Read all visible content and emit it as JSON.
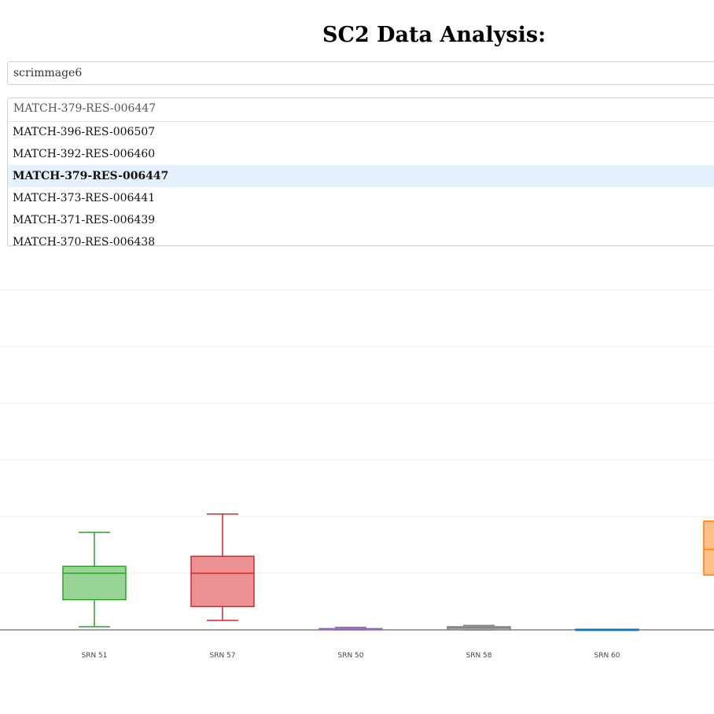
{
  "header": {
    "title": "SC2 Data Analysis:"
  },
  "dataset_select": {
    "value": "scrimmage6"
  },
  "match_select": {
    "value": "MATCH-379-RES-006447",
    "options": [
      "MATCH-396-RES-006507",
      "MATCH-392-RES-006460",
      "MATCH-379-RES-006447",
      "MATCH-373-RES-006441",
      "MATCH-371-RES-006439",
      "MATCH-370-RES-006438"
    ],
    "selected_index": 2
  },
  "chart_data": {
    "type": "box",
    "categories": [
      "SRN 51",
      "SRN 57",
      "SRN 50",
      "SRN 58",
      "SRN 60",
      ""
    ],
    "ylim": [
      0,
      550
    ],
    "grid": true,
    "series": [
      {
        "category": "SRN 51",
        "min": 5,
        "q1": 48,
        "median": 90,
        "q3": 101,
        "max": 155,
        "color": "#2ca02c",
        "fill": "#98d594"
      },
      {
        "category": "SRN 57",
        "min": 15,
        "q1": 37,
        "median": 90,
        "q3": 117,
        "max": 184,
        "color": "#d62728",
        "fill": "#ec9193"
      },
      {
        "category": "SRN 50",
        "min": 0,
        "q1": 0,
        "median": 1,
        "q3": 2,
        "max": 4,
        "color": "#9467bd",
        "fill": "#c9b3de"
      },
      {
        "category": "SRN 58",
        "min": 0,
        "q1": 0,
        "median": 3,
        "q3": 5,
        "max": 7,
        "color": "#7f7f7f",
        "fill": "#bfbfbf"
      },
      {
        "category": "SRN 60",
        "min": 0,
        "q1": 0,
        "median": 0,
        "q3": 1,
        "max": 1,
        "color": "#1f77b4",
        "fill": "#8fbbd9"
      },
      {
        "category": "",
        "min": 80,
        "q1": 87,
        "median": 128,
        "q3": 173,
        "max": 173,
        "color": "#ff7f0e",
        "fill": "#ffbf87"
      }
    ]
  }
}
